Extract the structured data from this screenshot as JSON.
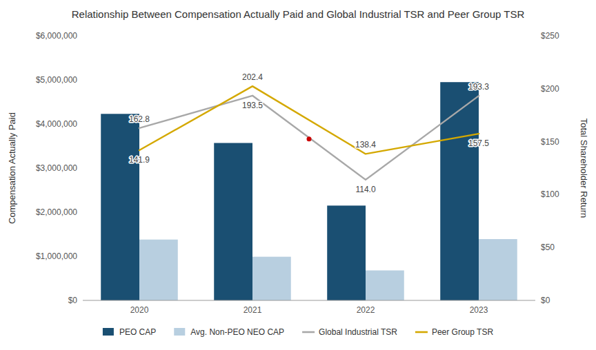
{
  "chart_data": {
    "type": "bar",
    "title": "Relationship Between Compensation Actually Paid and Global Industrial TSR and Peer Group TSR",
    "categories": [
      "2020",
      "2021",
      "2022",
      "2023"
    ],
    "series": [
      {
        "name": "PEO CAP",
        "type": "bar",
        "color": "#1a4f72",
        "values": [
          4230000,
          3570000,
          2150000,
          4950000
        ]
      },
      {
        "name": "Avg. Non-PEO NEO CAP",
        "type": "bar",
        "color": "#b8cfe0",
        "values": [
          1380000,
          990000,
          680000,
          1390000
        ]
      },
      {
        "name": "Global Industrial TSR",
        "type": "line",
        "axis": "y2",
        "color": "#a8a8a8",
        "values": [
          162.8,
          193.5,
          114.0,
          193.3
        ],
        "value_labels": [
          "162.8",
          "193.5",
          "114.0",
          "193.3"
        ],
        "data_labels": true
      },
      {
        "name": "Peer Group TSR",
        "type": "line",
        "axis": "y2",
        "color": "#d4a800",
        "values": [
          141.9,
          202.4,
          138.4,
          157.5
        ],
        "data_labels": true
      }
    ],
    "ylabel": "Compensation Actually Paid",
    "y2label": "Total Shareholder Return",
    "ylim": [
      0,
      6000000
    ],
    "yticks": [
      {
        "value": 0,
        "label": "$0"
      },
      {
        "value": 1000000,
        "label": "$1,000,000"
      },
      {
        "value": 2000000,
        "label": "$2,000,000"
      },
      {
        "value": 3000000,
        "label": "$3,000,000"
      },
      {
        "value": 4000000,
        "label": "$4,000,000"
      },
      {
        "value": 5000000,
        "label": "$5,000,000"
      },
      {
        "value": 6000000,
        "label": "$6,000,000"
      }
    ],
    "y2lim": [
      0,
      250
    ],
    "y2ticks": [
      {
        "value": 0,
        "label": "$0"
      },
      {
        "value": 50,
        "label": "$50"
      },
      {
        "value": 100,
        "label": "$100"
      },
      {
        "value": 150,
        "label": "$150"
      },
      {
        "value": 200,
        "label": "$200"
      },
      {
        "value": 250,
        "label": "$250"
      }
    ],
    "dot": {
      "x": 1.5,
      "value": 152.5,
      "axis": "y2",
      "color": "#cc0000"
    },
    "grid": false,
    "legend": "bottom"
  }
}
